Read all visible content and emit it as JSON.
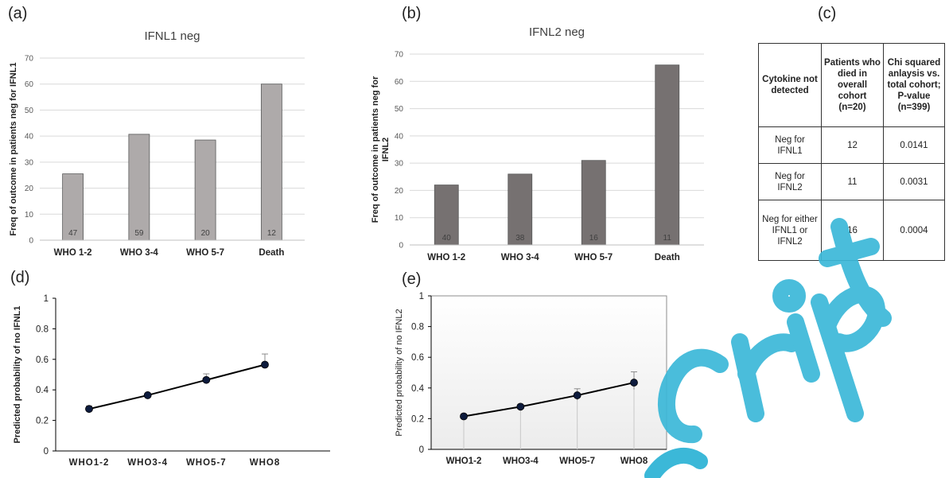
{
  "panel_labels": {
    "a": "(a)",
    "b": "(b)",
    "c": "(c)",
    "d": "(d)",
    "e": "(e)"
  },
  "colors": {
    "bar_a": "#aeaaaa",
    "bar_b": "#767171",
    "line": "#000000",
    "marker": "#0d1b3d",
    "watermark": "#3bb8d8"
  },
  "table": {
    "headers": [
      "Cytokine not detected",
      "Patients who died in overall cohort (n=20)",
      "Chi squared anlaysis vs. total cohort; P-value (n=399)"
    ],
    "rows": [
      [
        "Neg for IFNL1",
        "12",
        "0.0141"
      ],
      [
        "Neg for IFNL2",
        "11",
        "0.0031"
      ],
      [
        "Neg for either IFNL1 or IFNL2",
        "16",
        "0.0004"
      ]
    ]
  },
  "chart_data": [
    {
      "type": "bar",
      "title": "IFNL1 neg",
      "ylabel": "Freq of outcome in patients neg for IFNL1",
      "xlabel": "",
      "categories": [
        "WHO 1-2",
        "WHO 3-4",
        "WHO 5-7",
        "Death"
      ],
      "values": [
        25.5,
        40.7,
        38.5,
        60
      ],
      "bar_labels": [
        "47",
        "59",
        "20",
        "12"
      ],
      "ylim": [
        0,
        70
      ],
      "yticks": [
        0,
        10,
        20,
        30,
        40,
        50,
        60,
        70
      ],
      "grid": true
    },
    {
      "type": "bar",
      "title": "IFNL2 neg",
      "ylabel": "Freq of outcome in patients neg for IFNL2",
      "xlabel": "",
      "categories": [
        "WHO 1-2",
        "WHO 3-4",
        "WHO 5-7",
        "Death"
      ],
      "values": [
        22,
        26,
        31,
        66
      ],
      "bar_labels": [
        "40",
        "38",
        "16",
        "11"
      ],
      "ylim": [
        0,
        70
      ],
      "yticks": [
        0,
        10,
        20,
        30,
        40,
        50,
        60,
        70
      ],
      "grid": true
    },
    {
      "type": "line",
      "title": "",
      "ylabel": "Predicted probability of no IFNL1",
      "xlabel": "",
      "categories": [
        "WHO1-2",
        "WHO3-4",
        "WHO5-7",
        "WHO8"
      ],
      "values": [
        0.275,
        0.365,
        0.465,
        0.565
      ],
      "error_upper": [
        0.295,
        0.375,
        0.505,
        0.635
      ],
      "error_lower": [
        0.26,
        0.355,
        0.45,
        0.55
      ],
      "ylim": [
        0,
        1
      ],
      "yticks": [
        0,
        0.2,
        0.4,
        0.6,
        0.8,
        1
      ],
      "ytick_labels": [
        "0",
        "0.2",
        "0.4",
        "0.6",
        "0.8",
        "1"
      ],
      "grid": false
    },
    {
      "type": "line",
      "title": "",
      "ylabel": "Predicted probability of no IFNL2",
      "xlabel": "",
      "categories": [
        "WHO1-2",
        "WHO3-4",
        "WHO5-7",
        "WHO8"
      ],
      "values": [
        0.215,
        0.278,
        0.352,
        0.435
      ],
      "error_upper": [
        0.23,
        0.29,
        0.395,
        0.505
      ],
      "error_lower": [
        0.2,
        0.265,
        0.32,
        0.39
      ],
      "ylim": [
        0,
        1
      ],
      "yticks": [
        0,
        0.2,
        0.4,
        0.6,
        0.8,
        1
      ],
      "ytick_labels": [
        "0",
        "0.2",
        "0.4",
        "0.6",
        "0.8",
        "1"
      ],
      "grid": false
    }
  ]
}
